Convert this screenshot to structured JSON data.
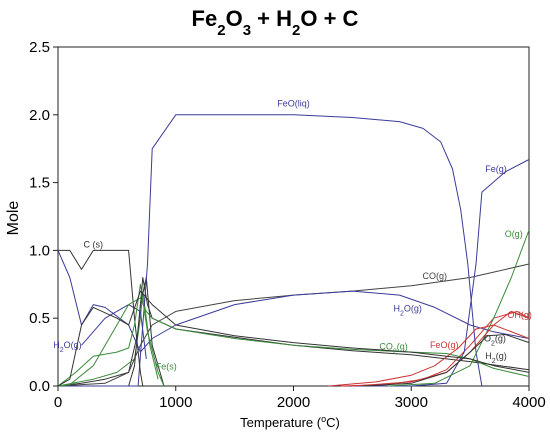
{
  "title": {
    "parts": [
      {
        "text": "Fe",
        "sub": false
      },
      {
        "text": "2",
        "sub": true
      },
      {
        "text": "O",
        "sub": false
      },
      {
        "text": "3",
        "sub": true
      },
      {
        "text": " + H",
        "sub": false
      },
      {
        "text": "2",
        "sub": true
      },
      {
        "text": "O + C",
        "sub": false
      }
    ]
  },
  "chart_data": {
    "type": "line",
    "xlabel": "Temperature (°C)",
    "xlabel_parts": [
      {
        "text": "Temperature (",
        "sup": false
      },
      {
        "text": "o",
        "sup": true
      },
      {
        "text": "C)",
        "sup": false
      }
    ],
    "ylabel": "Mole",
    "xlim": [
      0,
      4000
    ],
    "ylim": [
      0,
      2.5
    ],
    "xticks": [
      "0",
      "1000",
      "2000",
      "3000",
      "4000"
    ],
    "yticks": [
      "0.0",
      "0.5",
      "1.0",
      "1.5",
      "2.0",
      "2.5"
    ],
    "grid": false,
    "legend": "none (inline labels)",
    "series": [
      {
        "name": "FeO(liq)",
        "label_parts": [
          {
            "text": "FeO(liq)",
            "sub": false
          }
        ],
        "color": "#3b3b9a",
        "label_at": [
          2000,
          2.06
        ],
        "x": [
          0,
          680,
          760,
          800,
          1000,
          1500,
          2000,
          2500,
          2900,
          3100,
          3250,
          3350,
          3420,
          3480,
          3550,
          3600
        ],
        "y": [
          0,
          0,
          0.9,
          1.75,
          2.0,
          2.0,
          2.0,
          1.98,
          1.95,
          1.9,
          1.8,
          1.6,
          1.3,
          0.9,
          0.25,
          0.0
        ]
      },
      {
        "name": "C (s)",
        "label_parts": [
          {
            "text": "C (s)",
            "sub": false
          }
        ],
        "color": "#333333",
        "label_at": [
          300,
          1.02
        ],
        "x": [
          0,
          100,
          200,
          300,
          400,
          500,
          600,
          650,
          700,
          720
        ],
        "y": [
          1.0,
          1.0,
          0.86,
          1.0,
          1.0,
          1.0,
          1.0,
          0.5,
          0.1,
          0.0
        ]
      },
      {
        "name": "CO(g)",
        "label_parts": [
          {
            "text": "CO(g)",
            "sub": false
          }
        ],
        "color": "#444444",
        "label_at": [
          3200,
          0.79
        ],
        "x": [
          0,
          400,
          600,
          700,
          800,
          1000,
          1500,
          2000,
          2500,
          3000,
          3500,
          4000
        ],
        "y": [
          0,
          0.02,
          0.1,
          0.3,
          0.45,
          0.55,
          0.63,
          0.67,
          0.7,
          0.74,
          0.8,
          0.9
        ]
      },
      {
        "name": "Fe(g)",
        "label_parts": [
          {
            "text": "Fe(g)",
            "sub": false
          }
        ],
        "color": "#3b3b9a",
        "label_at": [
          3720,
          1.58
        ],
        "x": [
          2500,
          3000,
          3300,
          3450,
          3550,
          3600,
          3800,
          4000
        ],
        "y": [
          0,
          0,
          0.02,
          0.25,
          0.9,
          1.43,
          1.58,
          1.67
        ]
      },
      {
        "name": "O(g)",
        "label_parts": [
          {
            "text": "O(g)",
            "sub": false
          }
        ],
        "color": "#3a8a3a",
        "label_at": [
          3870,
          1.1
        ],
        "x": [
          2800,
          3200,
          3500,
          3700,
          3850,
          4000
        ],
        "y": [
          0,
          0.02,
          0.15,
          0.5,
          0.8,
          1.15
        ]
      },
      {
        "name": "H2O(g)",
        "label_parts": [
          {
            "text": "H",
            "sub": false
          },
          {
            "text": "2",
            "sub": true
          },
          {
            "text": "O(g)",
            "sub": false
          }
        ],
        "color": "#3b3b9a",
        "label_at": [
          80,
          0.28
        ],
        "label2_at": [
          2970,
          0.55
        ],
        "x": [
          0,
          100,
          200,
          300,
          400,
          600,
          700,
          800,
          1000,
          1500,
          2000,
          2500,
          2900,
          3200,
          3500,
          3700,
          4000
        ],
        "y": [
          1.0,
          0.8,
          0.45,
          0.6,
          0.58,
          0.45,
          0.25,
          0.35,
          0.45,
          0.6,
          0.67,
          0.7,
          0.67,
          0.58,
          0.45,
          0.4,
          0.35
        ]
      },
      {
        "name": "CO2(g)",
        "label_parts": [
          {
            "text": "CO",
            "sub": false
          },
          {
            "text": "2",
            "sub": true
          },
          {
            "text": "(g)",
            "sub": false
          }
        ],
        "color": "#3a8a3a",
        "label_at": [
          2850,
          0.27
        ],
        "x": [
          0,
          100,
          300,
          500,
          600,
          700,
          750,
          800,
          1000,
          1500,
          2000,
          2500,
          3000,
          3300,
          3500,
          3700,
          4000
        ],
        "y": [
          0,
          0.01,
          0.15,
          0.45,
          0.6,
          0.65,
          0.55,
          0.5,
          0.42,
          0.35,
          0.3,
          0.27,
          0.25,
          0.24,
          0.2,
          0.13,
          0.07
        ]
      },
      {
        "name": "Fe(s)",
        "label_parts": [
          {
            "text": "Fe(s)",
            "sub": false
          }
        ],
        "color": "#3a8a3a",
        "label_at": [
          920,
          0.12
        ],
        "x": [
          0,
          150,
          300,
          500,
          600,
          650,
          700,
          760,
          850,
          900
        ],
        "y": [
          0,
          0.1,
          0.22,
          0.25,
          0.28,
          0.45,
          0.75,
          0.4,
          0.1,
          0.0
        ]
      },
      {
        "name": "FeO(g)",
        "label_parts": [
          {
            "text": "FeO(g)",
            "sub": false
          }
        ],
        "color": "#cc3333",
        "label_at": [
          3280,
          0.28
        ],
        "x": [
          2300,
          2700,
          3000,
          3200,
          3400,
          3550,
          3700,
          4000
        ],
        "y": [
          0,
          0.03,
          0.08,
          0.15,
          0.28,
          0.42,
          0.45,
          0.35
        ]
      },
      {
        "name": "OH(g)",
        "label_parts": [
          {
            "text": "OH(g)",
            "sub": false
          }
        ],
        "color": "#cc3333",
        "label_at": [
          3920,
          0.5
        ],
        "x": [
          2500,
          3000,
          3300,
          3500,
          3700,
          3850,
          4000
        ],
        "y": [
          0,
          0.03,
          0.1,
          0.25,
          0.45,
          0.55,
          0.5
        ]
      },
      {
        "name": "O2(g)",
        "label_parts": [
          {
            "text": "O",
            "sub": false
          },
          {
            "text": "2",
            "sub": true
          },
          {
            "text": "(g)",
            "sub": false
          }
        ],
        "color": "#333333",
        "label_at": [
          3710,
          0.33
        ],
        "x": [
          2600,
          3000,
          3300,
          3500,
          3650,
          3800,
          4000
        ],
        "y": [
          0,
          0.02,
          0.1,
          0.25,
          0.37,
          0.38,
          0.32
        ]
      },
      {
        "name": "H2(g)",
        "label_parts": [
          {
            "text": "H",
            "sub": false
          },
          {
            "text": "2",
            "sub": true
          },
          {
            "text": "(g)",
            "sub": false
          }
        ],
        "color": "#333333",
        "label_at": [
          3720,
          0.2
        ],
        "x": [
          0,
          100,
          200,
          300,
          500,
          600,
          700,
          800,
          1000,
          1500,
          2000,
          2500,
          3000,
          3300,
          3500,
          3700,
          4000
        ],
        "y": [
          0,
          0.05,
          0.45,
          0.58,
          0.5,
          0.45,
          0.7,
          0.6,
          0.45,
          0.37,
          0.32,
          0.28,
          0.25,
          0.22,
          0.2,
          0.15,
          0.1
        ]
      }
    ],
    "extra_lines": [
      {
        "color": "#333333",
        "x": [
          0,
          200,
          400,
          600,
          680,
          720,
          760,
          800,
          1000,
          1500,
          2000,
          2500,
          3000,
          3500,
          4000
        ],
        "y": [
          0,
          0.02,
          0.05,
          0.1,
          0.4,
          0.8,
          0.6,
          0.5,
          0.42,
          0.36,
          0.3,
          0.26,
          0.23,
          0.18,
          0.12
        ]
      },
      {
        "color": "#3a8a3a",
        "x": [
          0,
          300,
          500,
          650,
          700,
          720,
          780,
          850
        ],
        "y": [
          0,
          0.05,
          0.1,
          0.2,
          0.5,
          0.7,
          0.3,
          0.05
        ]
      },
      {
        "color": "#333333",
        "x": [
          600,
          650,
          700,
          750,
          800,
          900
        ],
        "y": [
          0.0,
          0.15,
          0.6,
          0.8,
          0.3,
          0.0
        ]
      },
      {
        "color": "#3b3b9a",
        "x": [
          200,
          400,
          600,
          700,
          750
        ],
        "y": [
          0.3,
          0.5,
          0.6,
          0.55,
          0.2
        ]
      },
      {
        "color": "#cc3333",
        "x": [
          2400,
          2800,
          3100,
          3300,
          3500,
          3700,
          3900,
          4000
        ],
        "y": [
          0,
          0.01,
          0.05,
          0.12,
          0.3,
          0.5,
          0.55,
          0.5
        ]
      }
    ]
  }
}
